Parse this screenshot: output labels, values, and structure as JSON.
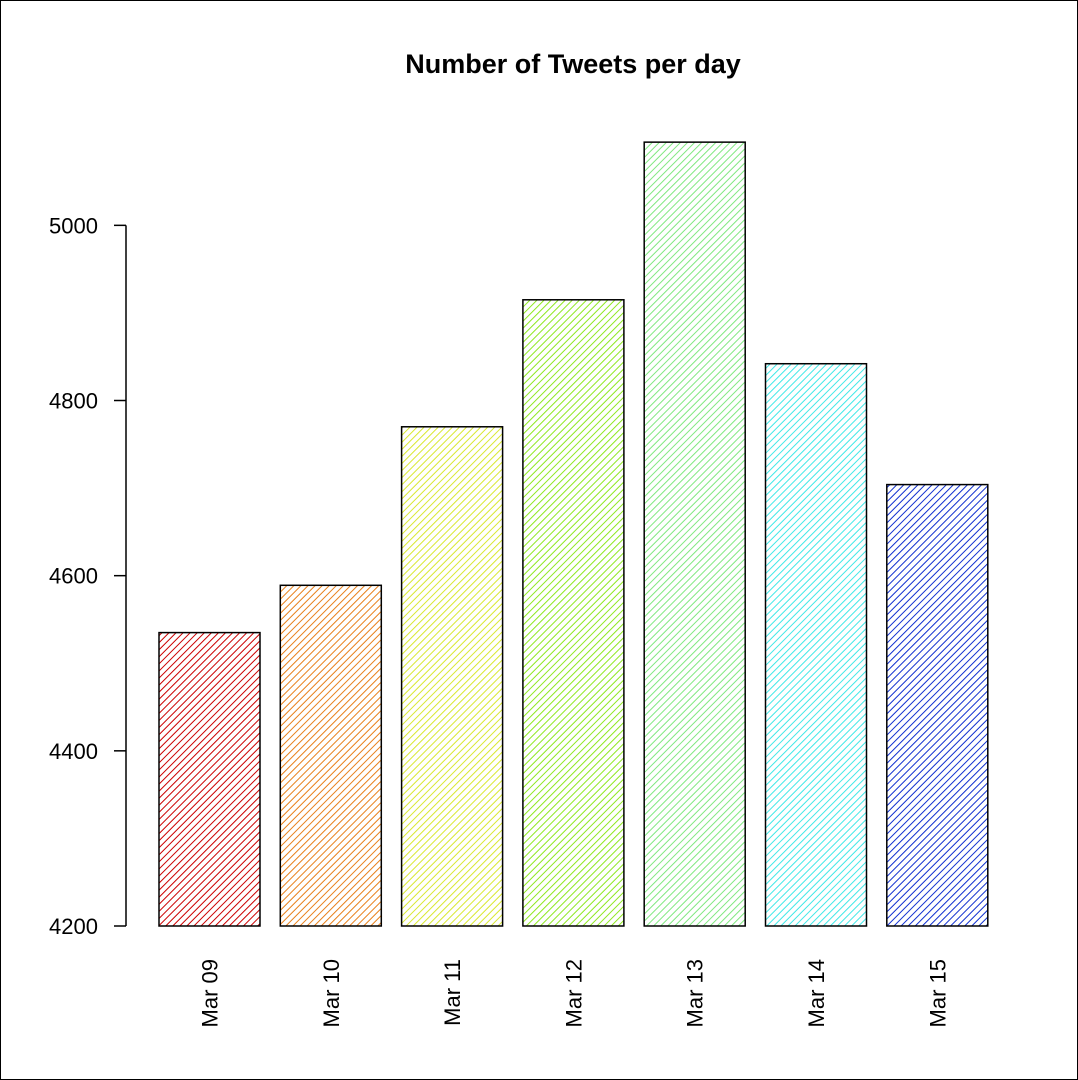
{
  "chart_data": {
    "type": "bar",
    "title": "Number of Tweets per day",
    "xlabel": "",
    "ylabel": "",
    "categories": [
      "Mar 09",
      "Mar 10",
      "Mar 11",
      "Mar 12",
      "Mar 13",
      "Mar 14",
      "Mar 15"
    ],
    "values": [
      4535,
      4589,
      4770,
      4915,
      5095,
      4842,
      4704
    ],
    "colors": [
      "#cc0000",
      "#e8801a",
      "#d9e830",
      "#8ee820",
      "#80e880",
      "#40e8e8",
      "#1030d0"
    ],
    "fill_style": "diagonal-hatch",
    "ylim": [
      4200,
      5110
    ],
    "yticks": [
      "4200",
      "4400",
      "4600",
      "4800",
      "5000"
    ],
    "grid": false,
    "legend": "none"
  }
}
